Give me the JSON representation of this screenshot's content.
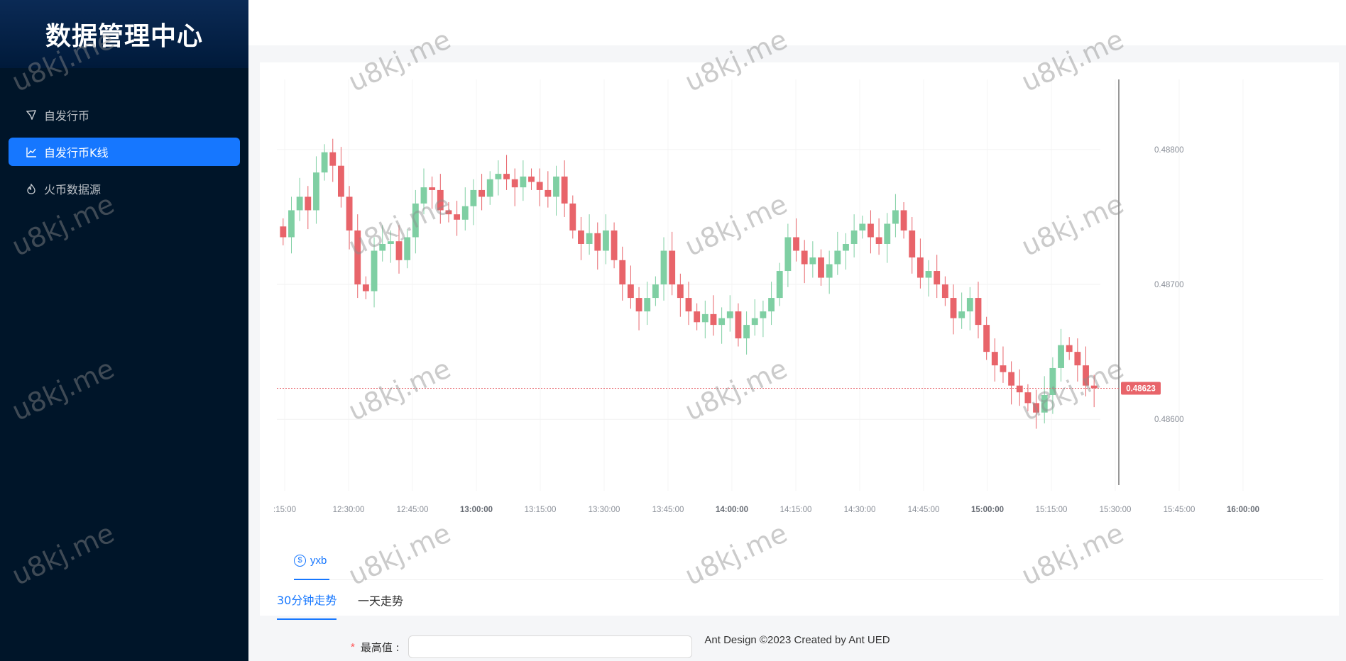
{
  "app": {
    "title": "数据管理中心"
  },
  "sidebar": {
    "items": [
      {
        "label": "自发行币",
        "icon": "send-icon",
        "active": false
      },
      {
        "label": "自发行币K线",
        "icon": "line-chart-icon",
        "active": true
      },
      {
        "label": "火币数据源",
        "icon": "fire-icon",
        "active": false
      }
    ]
  },
  "chart_data": {
    "type": "candlestick",
    "xlabel": "",
    "ylabel": "",
    "ylim": [
      0.48547,
      0.48852
    ],
    "y_ticks": [
      "0.48800",
      "0.48700",
      "0.48600"
    ],
    "x_ticks": [
      ":15:00",
      "12:30:00",
      "12:45:00",
      "13:00:00",
      "13:15:00",
      "13:30:00",
      "13:45:00",
      "14:00:00",
      "14:15:00",
      "14:30:00",
      "14:45:00",
      "15:00:00",
      "15:15:00",
      "15:30:00",
      "15:45:00",
      "16:00:00"
    ],
    "x_ticks_bold": [
      "13:00:00",
      "14:00:00",
      "15:00:00",
      "16:00:00"
    ],
    "last_price": "0.48623",
    "up_color": "#7fcfa3",
    "down_color": "#e8646a",
    "close_series": [
      0.48735,
      0.48755,
      0.48765,
      0.48755,
      0.48783,
      0.48798,
      0.48788,
      0.48765,
      0.4874,
      0.487,
      0.48695,
      0.48725,
      0.4873,
      0.48732,
      0.48718,
      0.48735,
      0.4876,
      0.48772,
      0.4877,
      0.48755,
      0.48752,
      0.48748,
      0.48758,
      0.4877,
      0.48765,
      0.48778,
      0.48782,
      0.48778,
      0.48772,
      0.4878,
      0.48776,
      0.4877,
      0.48765,
      0.4878,
      0.4876,
      0.4874,
      0.4873,
      0.48738,
      0.48725,
      0.4874,
      0.48718,
      0.487,
      0.4869,
      0.4868,
      0.4869,
      0.487,
      0.48725,
      0.487,
      0.4869,
      0.4868,
      0.48672,
      0.48678,
      0.4867,
      0.48675,
      0.4868,
      0.4866,
      0.4867,
      0.48675,
      0.4868,
      0.4869,
      0.4871,
      0.48735,
      0.48725,
      0.48715,
      0.4872,
      0.48705,
      0.48715,
      0.48725,
      0.4873,
      0.4874,
      0.48745,
      0.48735,
      0.4873,
      0.48745,
      0.48755,
      0.4874,
      0.4872,
      0.48705,
      0.4871,
      0.487,
      0.4869,
      0.48675,
      0.4868,
      0.4869,
      0.4867,
      0.4865,
      0.4864,
      0.48635,
      0.48625,
      0.4862,
      0.48612,
      0.48605,
      0.48618,
      0.48638,
      0.48655,
      0.4865,
      0.4864,
      0.48625,
      0.48623
    ]
  },
  "tabs_outer": [
    {
      "label": "yxb",
      "icon": "dollar-coin-icon"
    }
  ],
  "tabs_inner": [
    {
      "label": "30分钟走势",
      "active": true
    },
    {
      "label": "一天走势",
      "active": false
    }
  ],
  "form": {
    "required_mark": "*",
    "label": "最高值 :",
    "value": ""
  },
  "footer": {
    "text": "Ant Design ©2023 Created by Ant UED"
  },
  "watermark": {
    "text": "u8kj.me"
  }
}
